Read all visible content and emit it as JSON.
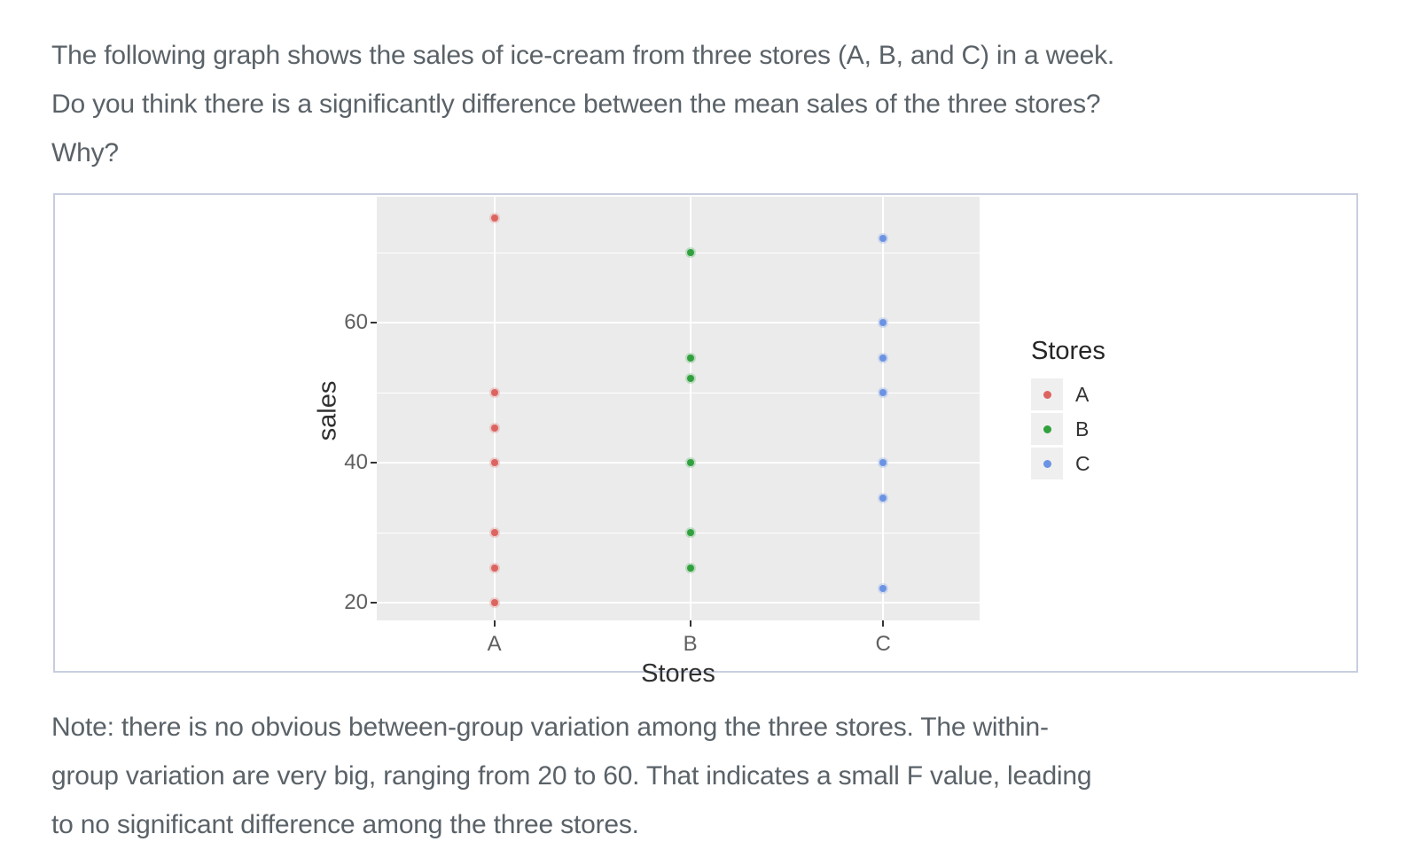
{
  "question": {
    "lines": [
      "The following graph shows the sales of ice-cream from three stores (A, B, and C) in a week.",
      "Do you think there is a significantly difference between the mean sales of the three stores?",
      "Why?"
    ]
  },
  "note": {
    "lines": [
      "Note: there is no obvious between-group variation among the three stores. The within-",
      "group variation are very big, ranging from 20 to 60. That indicates a small F value, leading",
      "to no significant difference among the three stores."
    ]
  },
  "chart_data": {
    "type": "scatter",
    "title": "",
    "xlabel": "Stores",
    "ylabel": "sales",
    "categories": [
      "A",
      "B",
      "C"
    ],
    "series": [
      {
        "name": "A",
        "color": "#DC6460",
        "values": [
          75,
          50,
          45,
          40,
          30,
          25,
          20
        ]
      },
      {
        "name": "B",
        "color": "#31A13E",
        "values": [
          70,
          55,
          52,
          40,
          30,
          25
        ]
      },
      {
        "name": "C",
        "color": "#6C93E3",
        "values": [
          72,
          60,
          55,
          50,
          40,
          35,
          22
        ]
      }
    ],
    "ylim": [
      17.5,
      78
    ],
    "yticks": [
      20,
      40,
      60
    ],
    "yminorticks": [
      30,
      50,
      70
    ],
    "grid": "white major and minor horizontal lines on gray panel, white vertical line per category",
    "panel_color": "#EBEBEB",
    "gridline_color": "#FFFFFF",
    "legend": {
      "title": "Stores",
      "position": "right",
      "entries": [
        "A",
        "B",
        "C"
      ]
    }
  }
}
